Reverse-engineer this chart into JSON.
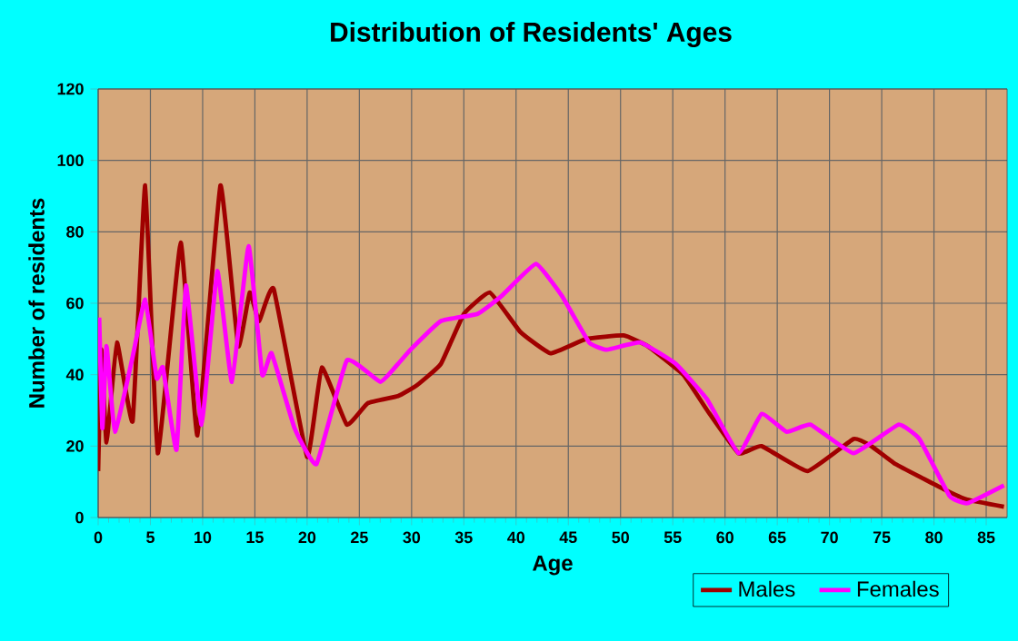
{
  "chart_data": {
    "type": "line",
    "title": "Distribution of Residents' Ages",
    "xlabel": "Age",
    "ylabel": "Number of residents",
    "xlim": [
      0,
      87
    ],
    "xticks": [
      0,
      5,
      10,
      15,
      20,
      25,
      30,
      35,
      40,
      45,
      50,
      55,
      60,
      65,
      70,
      75,
      80,
      85
    ],
    "ylim": [
      0,
      120
    ],
    "yticks": [
      0,
      20,
      40,
      60,
      80,
      100,
      120
    ],
    "grid": true,
    "legend": "bottom right",
    "marker": "none",
    "line_style": "solid",
    "series": [
      {
        "name": "Males",
        "color": "#a00000",
        "x": [
          0,
          0.3,
          0.8,
          1.8,
          3.3,
          4.5,
          5.7,
          7.9,
          9.5,
          11.7,
          13.4,
          14.5,
          15.4,
          16.8,
          20,
          21.4,
          23.8,
          25.8,
          28.7,
          30.5,
          32.8,
          35,
          37.5,
          40.4,
          43.3,
          46.7,
          50.3,
          52.6,
          56,
          58.3,
          61.3,
          63.5,
          67.9,
          72.3,
          74,
          76.3,
          80.9,
          83.2,
          86.7
        ],
        "values": [
          13,
          47,
          21,
          49,
          27,
          93,
          18,
          77,
          23,
          93,
          48,
          63,
          55,
          64,
          17,
          42,
          26,
          32,
          34,
          37,
          43,
          57,
          63,
          52,
          46,
          50,
          51,
          48,
          40,
          30,
          18,
          20,
          13,
          22,
          20,
          15,
          8,
          5,
          3
        ]
      },
      {
        "name": "Females",
        "color": "#ff00ff",
        "x": [
          0.1,
          0.4,
          0.8,
          1.6,
          3.3,
          4.5,
          5.6,
          6.2,
          7.5,
          8.4,
          9.9,
          11.4,
          12.8,
          14.4,
          15.7,
          16.6,
          18.8,
          20.9,
          23.8,
          27,
          28.7,
          29.9,
          32.8,
          36.3,
          38.6,
          41.9,
          44.4,
          47,
          48.7,
          51.9,
          55.3,
          58.3,
          61.3,
          63.5,
          65.9,
          68.2,
          72.3,
          76.6,
          78.6,
          81.5,
          83.2,
          86.7
        ],
        "values": [
          56,
          25,
          48,
          24,
          45,
          61,
          39,
          42,
          19,
          65,
          26,
          69,
          38,
          76,
          40,
          46,
          25,
          15,
          44,
          38,
          43,
          47,
          55,
          57,
          62,
          71,
          62,
          49,
          47,
          49,
          43,
          33,
          18,
          29,
          24,
          26,
          18,
          26,
          22,
          6,
          4,
          9
        ]
      }
    ]
  }
}
